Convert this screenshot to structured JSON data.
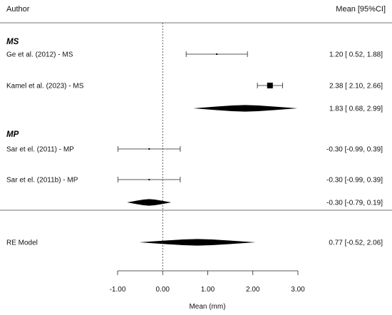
{
  "chart_data": {
    "type": "forest",
    "header": {
      "left": "Author",
      "right": "Mean [95%CI]"
    },
    "xlabel": "Mean (mm)",
    "xlim": [
      -1.0,
      3.0
    ],
    "ticks": [
      {
        "value": -1.0,
        "label": "-1.00"
      },
      {
        "value": 0.0,
        "label": "0.00"
      },
      {
        "value": 1.0,
        "label": "1.00"
      },
      {
        "value": 2.0,
        "label": "2.00"
      },
      {
        "value": 3.0,
        "label": "3.00"
      }
    ],
    "reference_line": 0.0,
    "groups": [
      {
        "label": "MS",
        "studies": [
          {
            "label": "Ge et al. (2012) - MS",
            "mean": 1.2,
            "lower": 0.52,
            "upper": 1.88,
            "weight": 1,
            "ci_text": "1.20 [ 0.52, 1.88]"
          },
          {
            "label": "Kamel et al. (2023) - MS",
            "mean": 2.38,
            "lower": 2.1,
            "upper": 2.66,
            "weight": 6,
            "ci_text": "2.38 [ 2.10, 2.66]"
          }
        ],
        "summary": {
          "mean": 1.83,
          "lower": 0.68,
          "upper": 2.99,
          "ci_text": "1.83 [ 0.68, 2.99]"
        }
      },
      {
        "label": "MP",
        "studies": [
          {
            "label": "Sar et el. (2011) - MP",
            "mean": -0.3,
            "lower": -0.99,
            "upper": 0.39,
            "weight": 1,
            "ci_text": "-0.30 [-0.99, 0.39]"
          },
          {
            "label": "Sar et el. (2011b) - MP",
            "mean": -0.3,
            "lower": -0.99,
            "upper": 0.39,
            "weight": 1,
            "ci_text": "-0.30 [-0.99, 0.39]"
          }
        ],
        "summary": {
          "mean": -0.3,
          "lower": -0.79,
          "upper": 0.19,
          "ci_text": "-0.30 [-0.79, 0.19]"
        }
      }
    ],
    "overall": {
      "label": "RE Model",
      "mean": 0.77,
      "lower": -0.52,
      "upper": 2.06,
      "ci_text": "0.77 [-0.52, 2.06]"
    }
  }
}
